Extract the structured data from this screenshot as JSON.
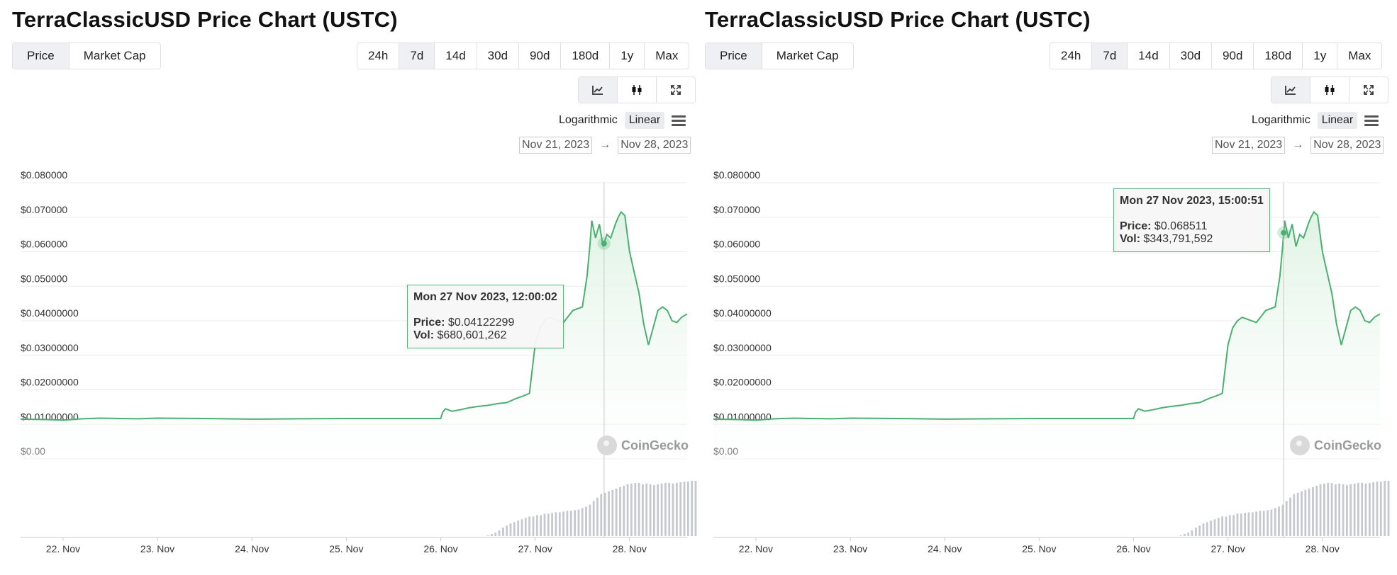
{
  "panels": [
    {
      "title": "TerraClassicUSD Price Chart (USTC)",
      "metric_tabs": [
        "Price",
        "Market Cap"
      ],
      "range_tabs": [
        "24h",
        "7d",
        "14d",
        "30d",
        "90d",
        "180d",
        "1y",
        "Max"
      ],
      "active_range": "7d",
      "scale": {
        "log": "Logarithmic",
        "linear": "Linear",
        "active": "Linear"
      },
      "date_from": "Nov 21, 2023",
      "date_arrow": "→",
      "date_to": "Nov 28, 2023",
      "tooltip": {
        "time": "Mon 27 Nov 2023, 12:00:02",
        "price_label": "Price:",
        "price": "$0.04122299",
        "vol_label": "Vol:",
        "vol": "$680,601,262",
        "x": 27.73
      },
      "watermark": "CoinGecko"
    },
    {
      "title": "TerraClassicUSD Price Chart (USTC)",
      "metric_tabs": [
        "Price",
        "Market Cap"
      ],
      "range_tabs": [
        "24h",
        "7d",
        "14d",
        "30d",
        "90d",
        "180d",
        "1y",
        "Max"
      ],
      "active_range": "7d",
      "scale": {
        "log": "Logarithmic",
        "linear": "Linear",
        "active": "Linear"
      },
      "date_from": "Nov 21, 2023",
      "date_arrow": "→",
      "date_to": "Nov 28, 2023",
      "tooltip": {
        "time": "Mon 27 Nov 2023, 15:00:51",
        "price_label": "Price:",
        "price": "$0.068511",
        "vol_label": "Vol:",
        "vol": "$343,791,592",
        "x": 27.59
      },
      "watermark": "CoinGecko"
    }
  ],
  "colors": {
    "line": "#4caf72",
    "fill": "#dff3e4",
    "volume": "#c5c9cf",
    "grid": "#ececec",
    "crosshair": "#c8c8c8"
  },
  "icons": [
    "line-chart-icon",
    "candlestick-icon",
    "fullscreen-icon"
  ],
  "chart_data": {
    "type": "line",
    "title": "TerraClassicUSD Price Chart (USTC)",
    "x_unit": "day of Nov 2023",
    "xlim": [
      21.55,
      28.61
    ],
    "ylim": [
      0,
      0.08
    ],
    "y_ticks": [
      "$0.00",
      "$0.01000000",
      "$0.02000000",
      "$0.03000000",
      "$0.04000000",
      "$0.050000",
      "$0.060000",
      "$0.070000",
      "$0.080000"
    ],
    "y_tick_values": [
      0,
      0.01,
      0.02,
      0.03,
      0.04,
      0.05,
      0.06,
      0.07,
      0.08
    ],
    "x_ticks": [
      "22. Nov",
      "23. Nov",
      "24. Nov",
      "25. Nov",
      "26. Nov",
      "27. Nov",
      "28. Nov"
    ],
    "x_tick_values": [
      22,
      23,
      24,
      25,
      26,
      27,
      28
    ],
    "grid": true,
    "price": {
      "x": [
        21.55,
        21.8,
        22.0,
        22.2,
        22.4,
        22.6,
        22.8,
        23.0,
        23.5,
        24.0,
        24.5,
        25.0,
        25.5,
        26.0,
        26.02,
        26.05,
        26.12,
        26.2,
        26.3,
        26.4,
        26.5,
        26.6,
        26.7,
        26.8,
        26.85,
        26.9,
        26.94,
        26.97,
        27.0,
        27.05,
        27.1,
        27.15,
        27.2,
        27.3,
        27.4,
        27.5,
        27.55,
        27.58,
        27.6,
        27.64,
        27.68,
        27.72,
        27.76,
        27.8,
        27.85,
        27.88,
        27.91,
        27.95,
        28.0,
        28.05,
        28.1,
        28.15,
        28.2,
        28.25,
        28.3,
        28.35,
        28.4,
        28.45,
        28.5,
        28.55,
        28.61
      ],
      "y": [
        0.0115,
        0.0114,
        0.0112,
        0.0116,
        0.0118,
        0.0117,
        0.0116,
        0.0118,
        0.0117,
        0.0115,
        0.0116,
        0.0117,
        0.0117,
        0.0117,
        0.0135,
        0.0145,
        0.0138,
        0.0142,
        0.0148,
        0.0152,
        0.0155,
        0.016,
        0.0163,
        0.0175,
        0.018,
        0.0185,
        0.019,
        0.026,
        0.033,
        0.038,
        0.04,
        0.041,
        0.0405,
        0.0395,
        0.043,
        0.044,
        0.053,
        0.062,
        0.069,
        0.064,
        0.068,
        0.0615,
        0.065,
        0.064,
        0.068,
        0.07,
        0.0715,
        0.0705,
        0.06,
        0.054,
        0.048,
        0.039,
        0.033,
        0.038,
        0.043,
        0.044,
        0.043,
        0.04,
        0.0395,
        0.041,
        0.042
      ]
    },
    "volume": {
      "x_start": 26.5,
      "step": 0.04,
      "values": [
        1,
        3,
        5,
        8,
        12,
        15,
        18,
        20,
        22,
        24,
        26,
        28,
        28,
        30,
        30,
        32,
        32,
        33,
        34,
        34,
        35,
        36,
        36,
        37,
        38,
        40,
        42,
        45,
        50,
        55,
        60,
        62,
        64,
        66,
        68,
        70,
        72,
        74,
        75,
        76,
        76,
        74,
        75,
        74,
        73,
        74,
        75,
        76,
        76,
        75,
        76,
        77,
        78,
        78,
        79,
        79,
        80,
        80,
        80,
        79
      ],
      "max_relative": 80
    }
  }
}
